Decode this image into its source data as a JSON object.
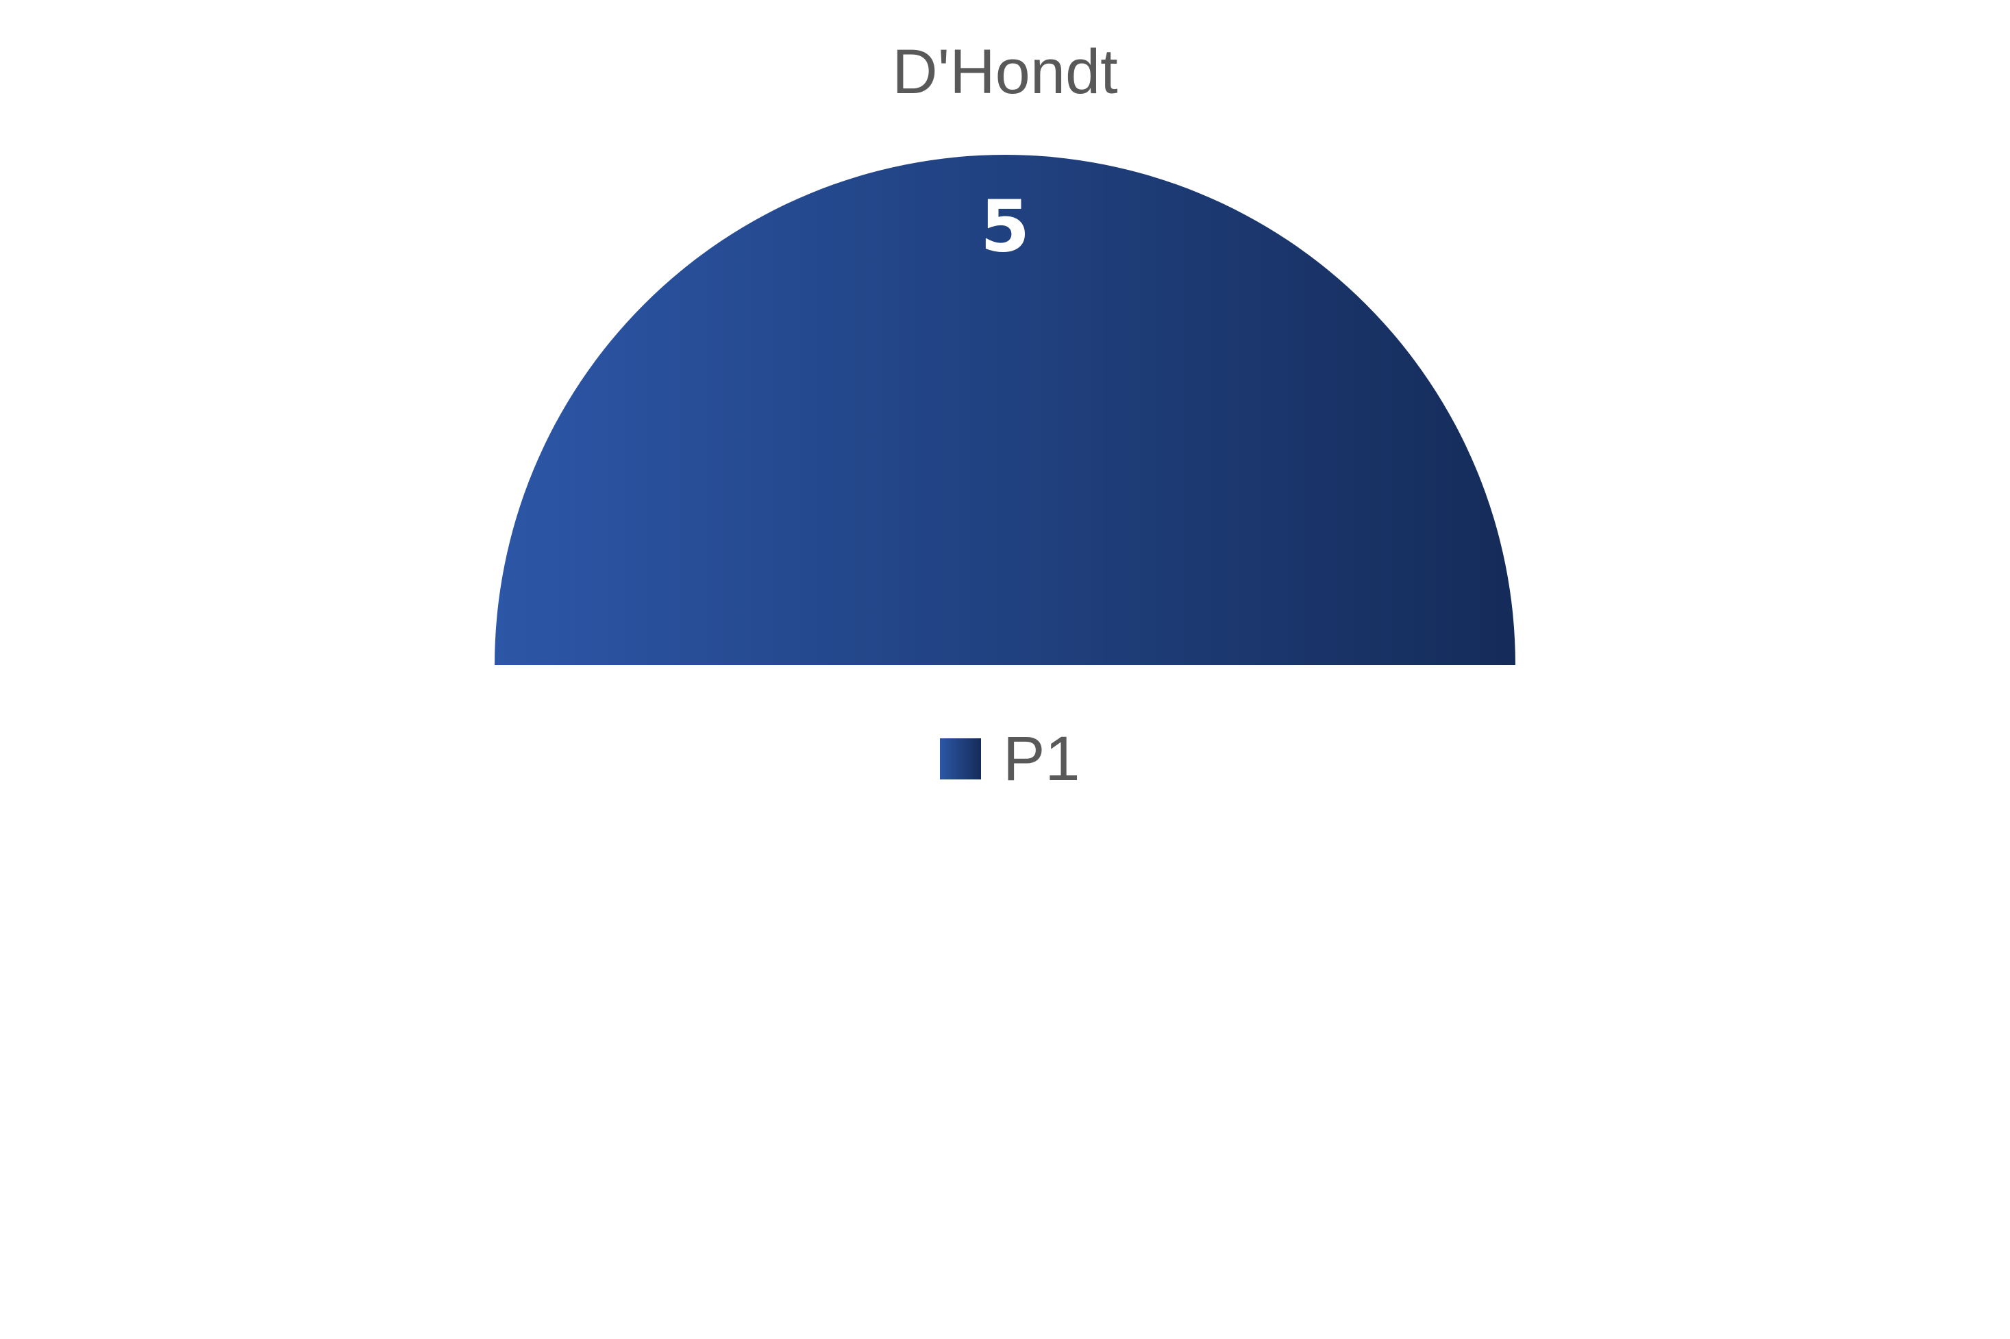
{
  "chart_data": {
    "type": "pie",
    "subtype": "half-donut-parliament",
    "title": "D'Hondt",
    "categories": [
      "P1"
    ],
    "values": [
      5
    ],
    "data_labels": [
      "5"
    ],
    "colors": {
      "P1_start": "#2c56a6",
      "P1_end": "#152c5a"
    },
    "legend": {
      "placement": "bottom",
      "entries": [
        "P1"
      ]
    }
  }
}
